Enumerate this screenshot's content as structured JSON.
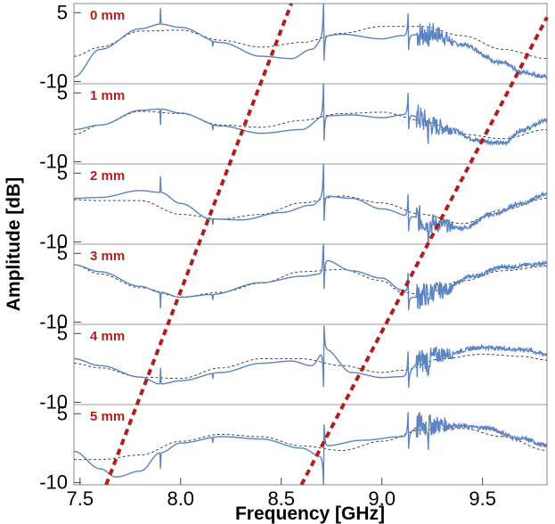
{
  "chart_data": {
    "type": "line",
    "xlabel": "Frequency [GHz]",
    "ylabel": "Amplitude [dB]",
    "xlim": [
      7.47,
      9.82
    ],
    "ylim": [
      -10.5,
      7
    ],
    "x_ticks": [
      "7.5",
      "8.0",
      "8.5",
      "9.0",
      "9.5"
    ],
    "x_tick_values": [
      7.5,
      8.0,
      8.5,
      9.0,
      9.5
    ],
    "y_ticks": [
      "5",
      "-10"
    ],
    "y_tick_values": [
      5,
      -10
    ],
    "grid": false,
    "colors": {
      "measured": "#5b84c4",
      "fit": "#333333",
      "guide": "#b21e1e",
      "label": "#b21e1e"
    },
    "resonances": [
      7.9,
      8.16,
      8.71,
      9.13,
      9.23
    ],
    "panels": [
      {
        "label": "0 mm",
        "baseline": [
          [
            7.47,
            -9
          ],
          [
            7.6,
            -3
          ],
          [
            7.8,
            1.5
          ],
          [
            7.9,
            2.5
          ],
          [
            8.0,
            1.8
          ],
          [
            8.2,
            -1.5
          ],
          [
            8.4,
            -4.5
          ],
          [
            8.55,
            -5
          ],
          [
            8.65,
            -3
          ],
          [
            8.72,
            0
          ],
          [
            8.8,
            0.3
          ],
          [
            9.0,
            -0.7
          ],
          [
            9.1,
            0
          ],
          [
            9.25,
            0.5
          ],
          [
            9.4,
            -2
          ],
          [
            9.6,
            -6
          ],
          [
            9.7,
            -8
          ],
          [
            9.82,
            -9
          ]
        ],
        "fit": [
          [
            7.47,
            -4.5
          ],
          [
            7.6,
            -2.5
          ],
          [
            7.8,
            1
          ],
          [
            8.0,
            1.2
          ],
          [
            8.2,
            -1
          ],
          [
            8.4,
            -2.5
          ],
          [
            8.6,
            -1.5
          ],
          [
            8.8,
            0.5
          ],
          [
            9.0,
            2
          ],
          [
            9.2,
            2
          ],
          [
            9.4,
            0
          ],
          [
            9.6,
            -3
          ],
          [
            9.82,
            -5
          ]
        ]
      },
      {
        "label": "1 mm",
        "baseline": [
          [
            7.47,
            -3
          ],
          [
            7.6,
            -2
          ],
          [
            7.8,
            1.2
          ],
          [
            7.9,
            1.5
          ],
          [
            8.0,
            0.6
          ],
          [
            8.2,
            -2.2
          ],
          [
            8.4,
            -3.8
          ],
          [
            8.6,
            -3
          ],
          [
            8.72,
            0
          ],
          [
            8.85,
            0.2
          ],
          [
            9.0,
            -0.4
          ],
          [
            9.12,
            0.3
          ],
          [
            9.3,
            -2.5
          ],
          [
            9.5,
            -5.5
          ],
          [
            9.6,
            -6
          ],
          [
            9.7,
            -3
          ],
          [
            9.82,
            -1
          ]
        ],
        "fit": [
          [
            7.47,
            -4
          ],
          [
            7.6,
            -2
          ],
          [
            7.8,
            1
          ],
          [
            8.0,
            0.5
          ],
          [
            8.2,
            -2
          ],
          [
            8.4,
            -2.5
          ],
          [
            8.6,
            -1
          ],
          [
            8.8,
            0.5
          ],
          [
            9.0,
            0.8
          ],
          [
            9.2,
            -1
          ],
          [
            9.4,
            -4
          ],
          [
            9.6,
            -5
          ],
          [
            9.82,
            -3
          ]
        ]
      },
      {
        "label": "2 mm",
        "baseline": [
          [
            7.47,
            -0.5
          ],
          [
            7.6,
            -0.3
          ],
          [
            7.8,
            1.2
          ],
          [
            7.9,
            0.8
          ],
          [
            8.0,
            -1.6
          ],
          [
            8.15,
            -5
          ],
          [
            8.3,
            -5.2
          ],
          [
            8.5,
            -3.6
          ],
          [
            8.65,
            -2
          ],
          [
            8.72,
            0
          ],
          [
            8.85,
            -0.5
          ],
          [
            9.0,
            -2.8
          ],
          [
            9.15,
            -4.5
          ],
          [
            9.25,
            -6
          ],
          [
            9.4,
            -7
          ],
          [
            9.55,
            -4
          ],
          [
            9.7,
            -1.5
          ],
          [
            9.82,
            0.5
          ]
        ],
        "fit": [
          [
            7.47,
            -0.8
          ],
          [
            7.6,
            -1
          ],
          [
            7.8,
            -1
          ],
          [
            8.0,
            -4
          ],
          [
            8.2,
            -5
          ],
          [
            8.4,
            -4
          ],
          [
            8.6,
            -1.5
          ],
          [
            8.8,
            0
          ],
          [
            9.0,
            -1.5
          ],
          [
            9.2,
            -4
          ],
          [
            9.4,
            -6
          ],
          [
            9.6,
            -3
          ],
          [
            9.82,
            -0.5
          ]
        ]
      },
      {
        "label": "3 mm",
        "baseline": [
          [
            7.47,
            2.5
          ],
          [
            7.6,
            1
          ],
          [
            7.8,
            -2.2
          ],
          [
            7.9,
            -3.5
          ],
          [
            8.0,
            -4.6
          ],
          [
            8.15,
            -4
          ],
          [
            8.4,
            -1.4
          ],
          [
            8.6,
            0
          ],
          [
            8.7,
            0.5
          ],
          [
            8.72,
            3.5
          ],
          [
            8.85,
            1.2
          ],
          [
            9.0,
            -0.4
          ],
          [
            9.1,
            -3
          ],
          [
            9.15,
            -4.6
          ],
          [
            9.3,
            -3
          ],
          [
            9.45,
            0
          ],
          [
            9.6,
            2
          ],
          [
            9.82,
            2.8
          ]
        ],
        "fit": [
          [
            7.47,
            2.5
          ],
          [
            7.6,
            0.5
          ],
          [
            7.8,
            -2.5
          ],
          [
            8.0,
            -4.5
          ],
          [
            8.2,
            -3.5
          ],
          [
            8.4,
            -1.5
          ],
          [
            8.6,
            1
          ],
          [
            8.8,
            1.5
          ],
          [
            9.0,
            -1
          ],
          [
            9.1,
            -3.5
          ],
          [
            9.2,
            -4
          ],
          [
            9.4,
            -1
          ],
          [
            9.6,
            1.2
          ],
          [
            9.82,
            2.2
          ]
        ]
      },
      {
        "label": "4 mm",
        "baseline": [
          [
            7.47,
            -0.5
          ],
          [
            7.6,
            -2
          ],
          [
            7.8,
            -4.5
          ],
          [
            7.9,
            -6
          ],
          [
            8.0,
            -5.3
          ],
          [
            8.2,
            -3.5
          ],
          [
            8.4,
            -1.5
          ],
          [
            8.55,
            -1
          ],
          [
            8.65,
            -2
          ],
          [
            8.72,
            1.5
          ],
          [
            8.85,
            -3.5
          ],
          [
            9.0,
            -4.6
          ],
          [
            9.1,
            -4.4
          ],
          [
            9.2,
            -1
          ],
          [
            9.3,
            0.5
          ],
          [
            9.5,
            2
          ],
          [
            9.7,
            1.5
          ],
          [
            9.82,
            0.5
          ]
        ],
        "fit": [
          [
            7.47,
            -1.5
          ],
          [
            7.6,
            -2.5
          ],
          [
            7.8,
            -4.5
          ],
          [
            8.0,
            -4.8
          ],
          [
            8.2,
            -2.5
          ],
          [
            8.4,
            -0.5
          ],
          [
            8.6,
            -0.5
          ],
          [
            8.8,
            -2
          ],
          [
            9.0,
            -3.5
          ],
          [
            9.1,
            -3
          ],
          [
            9.3,
            -0.5
          ],
          [
            9.5,
            0.5
          ],
          [
            9.7,
            0
          ],
          [
            9.82,
            -0.8
          ]
        ]
      },
      {
        "label": "5 mm",
        "baseline": [
          [
            7.47,
            -3.2
          ],
          [
            7.6,
            -7
          ],
          [
            7.68,
            -8.8
          ],
          [
            7.8,
            -7.5
          ],
          [
            7.9,
            -3.5
          ],
          [
            8.0,
            -1.4
          ],
          [
            8.2,
            0
          ],
          [
            8.4,
            -0.5
          ],
          [
            8.6,
            -2.5
          ],
          [
            8.7,
            -4.3
          ],
          [
            8.72,
            -2
          ],
          [
            8.9,
            -0.8
          ],
          [
            9.1,
            0
          ],
          [
            9.2,
            2.5
          ],
          [
            9.3,
            2.6
          ],
          [
            9.5,
            2
          ],
          [
            9.7,
            -0.5
          ],
          [
            9.82,
            -2
          ]
        ],
        "fit": [
          [
            7.47,
            -5
          ],
          [
            7.6,
            -5
          ],
          [
            7.8,
            -4
          ],
          [
            8.0,
            -1
          ],
          [
            8.2,
            0.5
          ],
          [
            8.4,
            0
          ],
          [
            8.6,
            -2
          ],
          [
            8.8,
            -3
          ],
          [
            9.0,
            -1
          ],
          [
            9.2,
            1.5
          ],
          [
            9.4,
            1.8
          ],
          [
            9.6,
            0
          ],
          [
            9.82,
            -3
          ]
        ]
      }
    ],
    "guide_lines": [
      [
        [
          7.63,
          5,
          -10.5
        ],
        [
          8.55,
          0,
          7
        ]
      ],
      [
        [
          8.6,
          5,
          -10.5
        ],
        [
          9.82,
          0,
          4.0
        ]
      ]
    ]
  }
}
